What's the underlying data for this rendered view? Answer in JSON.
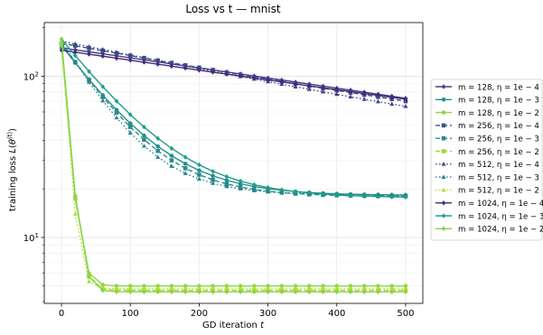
{
  "chart_data": {
    "type": "line",
    "title": "Loss vs t — mnist",
    "xlabel": "GD iteration t",
    "ylabel": "training loss L(θ^(t))",
    "xlim": [
      -25,
      525
    ],
    "ylim": [
      3.9,
      215
    ],
    "y_scale": "log",
    "grid": true,
    "legend_position": "outside-right",
    "x_ticks": [
      0,
      100,
      200,
      300,
      400,
      500
    ],
    "y_ticks": [
      {
        "value": 10,
        "label": "10^1"
      },
      {
        "value": 100,
        "label": "10^2"
      }
    ],
    "x": [
      0,
      20,
      40,
      60,
      80,
      100,
      120,
      140,
      160,
      180,
      200,
      220,
      240,
      260,
      280,
      300,
      320,
      340,
      360,
      380,
      400,
      420,
      440,
      460,
      480,
      500
    ],
    "series": [
      {
        "name": "m = 128, η = 1e − 4",
        "color": "#433e85",
        "linestyle": "solid",
        "marker": "diamond",
        "y0": 150,
        "yend": 73,
        "tau": 700,
        "lead": 0
      },
      {
        "name": "m = 128, η = 1e − 3",
        "color": "#21918c",
        "linestyle": "solid",
        "marker": "circle",
        "y0": 155,
        "yend": 18.3,
        "tau": 70,
        "lead": 0
      },
      {
        "name": "m = 128, η = 1e − 2",
        "color": "#90d743",
        "linestyle": "solid",
        "marker": "circle",
        "y0": 155,
        "yend": 5.0,
        "tau": 8,
        "lead": 0
      },
      {
        "name": "m = 256, η = 1e − 4",
        "color": "#3b528b",
        "linestyle": "dashed",
        "marker": "square",
        "y0": 160,
        "yend": 70,
        "tau": 500,
        "lead": 0
      },
      {
        "name": "m = 256, η = 1e − 3",
        "color": "#2c8a8c",
        "linestyle": "dashed",
        "marker": "square",
        "y0": 160,
        "yend": 18.0,
        "tau": 65,
        "lead": 0
      },
      {
        "name": "m = 256, η = 1e − 2",
        "color": "#a0da39",
        "linestyle": "dashed",
        "marker": "square",
        "y0": 160,
        "yend": 4.7,
        "tau": 8,
        "lead": 0
      },
      {
        "name": "m = 512, η = 1e − 4",
        "color": "#414487",
        "linestyle": "dotted",
        "marker": "triangle",
        "y0": 165,
        "yend": 65,
        "tau": 450,
        "lead": 0
      },
      {
        "name": "m = 512, η = 1e − 3",
        "color": "#26828e",
        "linestyle": "dotted",
        "marker": "triangle",
        "y0": 165,
        "yend": 18.4,
        "tau": 58,
        "lead": 0
      },
      {
        "name": "m = 512, η = 1e − 2",
        "color": "#b5de2b",
        "linestyle": "dotted",
        "marker": "triangle",
        "y0": 165,
        "yend": 4.8,
        "tau": 7,
        "lead": 0
      },
      {
        "name": "m = 1024, η = 1e − 4",
        "color": "#482878",
        "linestyle": "solid",
        "marker": "diamond",
        "y0": 145,
        "yend": 72,
        "tau": 650,
        "lead": 0
      },
      {
        "name": "m = 1024, η = 1e − 3",
        "color": "#1f9e89",
        "linestyle": "solid",
        "marker": "diamond",
        "y0": 170,
        "yend": 17.8,
        "tau": 75,
        "lead": 0
      },
      {
        "name": "m = 1024, η = 1e − 2",
        "color": "#84d44b",
        "linestyle": "solid",
        "marker": "diamond",
        "y0": 170,
        "yend": 4.6,
        "tau": 8,
        "lead": 0
      }
    ]
  }
}
